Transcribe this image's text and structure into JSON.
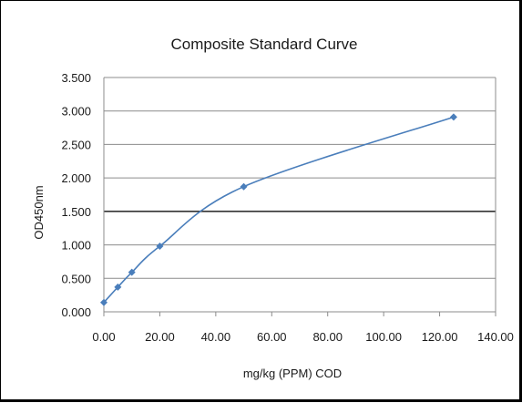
{
  "chart_data": {
    "type": "scatter",
    "title": "Composite Standard Curve",
    "xlabel": "mg/kg (PPM) COD",
    "ylabel": "OD450nm",
    "xlim": [
      0,
      140
    ],
    "ylim": [
      0,
      3.5
    ],
    "x_ticks": [
      "0.00",
      "20.00",
      "40.00",
      "60.00",
      "80.00",
      "100.00",
      "120.00",
      "140.00"
    ],
    "y_ticks": [
      "0.000",
      "0.500",
      "1.000",
      "1.500",
      "2.000",
      "2.500",
      "3.000",
      "3.500"
    ],
    "grid": "horizontal",
    "legend": "none",
    "series": [
      {
        "x": [
          0,
          5,
          10,
          20,
          50,
          125
        ],
        "y": [
          0.14,
          0.37,
          0.59,
          0.98,
          1.87,
          2.91
        ],
        "marker": "diamond",
        "trendline": "smooth",
        "color": "#4a7ebb"
      }
    ],
    "colors": {
      "series": "#4a7ebb",
      "grid": "#8c8c8c",
      "plot_border": "#8c8c8c"
    }
  }
}
